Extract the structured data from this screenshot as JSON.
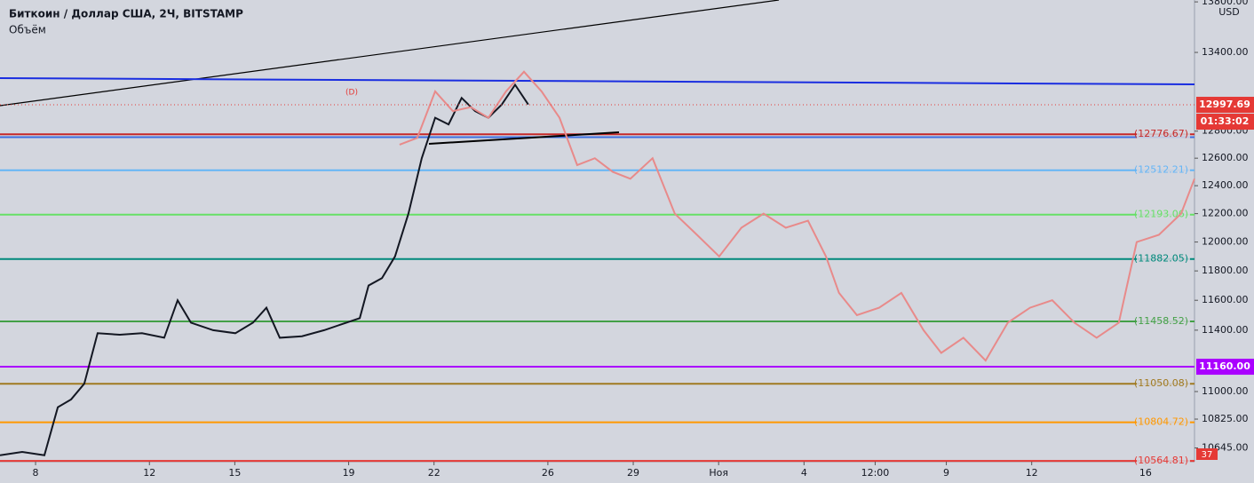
{
  "header": {
    "title": "Биткоин / Доллар США, 2Ч, BITSTAMP",
    "subtitle": "Объём"
  },
  "chart_data": {
    "type": "line",
    "log_scale": true,
    "currency": "USD",
    "xlim": [
      6.75,
      48.72
    ],
    "xticks": [
      8,
      12,
      15,
      19,
      22,
      26,
      29,
      {
        "value": 32,
        "label": "Ноя"
      },
      {
        "value": 35,
        "label": "4"
      },
      {
        "value": 37.5,
        "label": "12:00"
      },
      {
        "value": 40,
        "label": "9"
      },
      {
        "value": 43,
        "label": "12"
      },
      {
        "value": 47,
        "label": "16"
      }
    ],
    "ylim": [
      10560,
      13815
    ],
    "yticks": [
      {
        "value": 13800,
        "label": "13800.00"
      },
      {
        "value": 13400,
        "label": "13400.00"
      },
      {
        "value": 12800,
        "label": "12800.00"
      },
      {
        "value": 12600,
        "label": "12600.00"
      },
      {
        "value": 12400,
        "label": "12400.00"
      },
      {
        "value": 12200,
        "label": "12200.00"
      },
      {
        "value": 12000,
        "label": "12000.00"
      },
      {
        "value": 11800,
        "label": "11800.00"
      },
      {
        "value": 11600,
        "label": "11600.00"
      },
      {
        "value": 11400,
        "label": "11400.00"
      },
      {
        "value": 11000,
        "label": "11000.00"
      },
      {
        "value": 10825,
        "label": "10825.00"
      },
      {
        "value": 10645,
        "label": "10645.00"
      }
    ],
    "series": [
      {
        "color": "#131722",
        "x": [
          6.75,
          7.53,
          8.31,
          8.78,
          9.25,
          9.71,
          10.18,
          10.96,
          11.74,
          12.52,
          12.99,
          13.46,
          14.24,
          15.02,
          15.64,
          16.11,
          16.58,
          17.36,
          18.14,
          18.92,
          19.39,
          19.7,
          20.17,
          20.63,
          21.1,
          21.57,
          22.04,
          22.51,
          22.97,
          23.44,
          23.91,
          24.38,
          24.85,
          25.31
        ],
        "values": [
          10600,
          10620,
          10600,
          10900,
          10950,
          11050,
          11380,
          11370,
          11380,
          11350,
          11600,
          11450,
          11400,
          11380,
          11450,
          11550,
          11350,
          11360,
          11400,
          11450,
          11480,
          11700,
          11750,
          11900,
          12200,
          12600,
          12900,
          12850,
          13050,
          12950,
          12900,
          13000,
          13150,
          13000
        ]
      },
      {
        "color": "#e88a8a",
        "x": [
          20.79,
          21.41,
          22.04,
          22.66,
          23.29,
          23.91,
          24.53,
          25.16,
          25.78,
          26.41,
          27.03,
          27.65,
          28.28,
          28.9,
          29.68,
          30.46,
          31.24,
          32.02,
          32.8,
          33.58,
          34.36,
          35.14,
          35.77,
          36.23,
          36.86,
          37.64,
          38.42,
          39.2,
          39.82,
          40.6,
          41.38,
          42.16,
          42.94,
          43.72,
          44.5,
          45.28,
          46.06,
          46.69,
          47.47,
          48.25,
          48.72
        ],
        "values": [
          12700,
          12750,
          13100,
          12950,
          12980,
          12900,
          13100,
          13250,
          13100,
          12900,
          12550,
          12600,
          12500,
          12450,
          12600,
          12200,
          12050,
          11900,
          12100,
          12200,
          12100,
          12150,
          11900,
          11650,
          11500,
          11550,
          11650,
          11400,
          11250,
          11350,
          11200,
          11450,
          11550,
          11600,
          11450,
          11350,
          11450,
          12000,
          12050,
          12200,
          12450
        ]
      }
    ],
    "levels": [
      {
        "value": 12776.67,
        "label": "(12776.67)",
        "color": "#c62828"
      },
      {
        "value": 12755,
        "color": "#3d6fe0"
      },
      {
        "value": 12512.21,
        "label": "(12512.21)",
        "color": "#64b5f6"
      },
      {
        "value": 12193.06,
        "label": "(12193.06)",
        "color": "#66e066"
      },
      {
        "value": 11882.05,
        "label": "(11882.05)",
        "color": "#00897b"
      },
      {
        "value": 11458.52,
        "label": "(11458.52)",
        "color": "#43a047"
      },
      {
        "value": 11160,
        "color": "#aa00ff"
      },
      {
        "value": 11050.08,
        "label": "(11050.08)",
        "color": "#a07a20"
      },
      {
        "value": 10804.72,
        "label": "(10804.72)",
        "color": "#ff9800"
      },
      {
        "value": 10564.81,
        "label": "(10564.81)",
        "color": "#e53935"
      }
    ],
    "last_price": 12997.69,
    "countdown": "01:33:02",
    "alert_price": {
      "value": 11160,
      "label": "11160.00"
    },
    "volume_label": 37,
    "annotation": "(D)"
  }
}
